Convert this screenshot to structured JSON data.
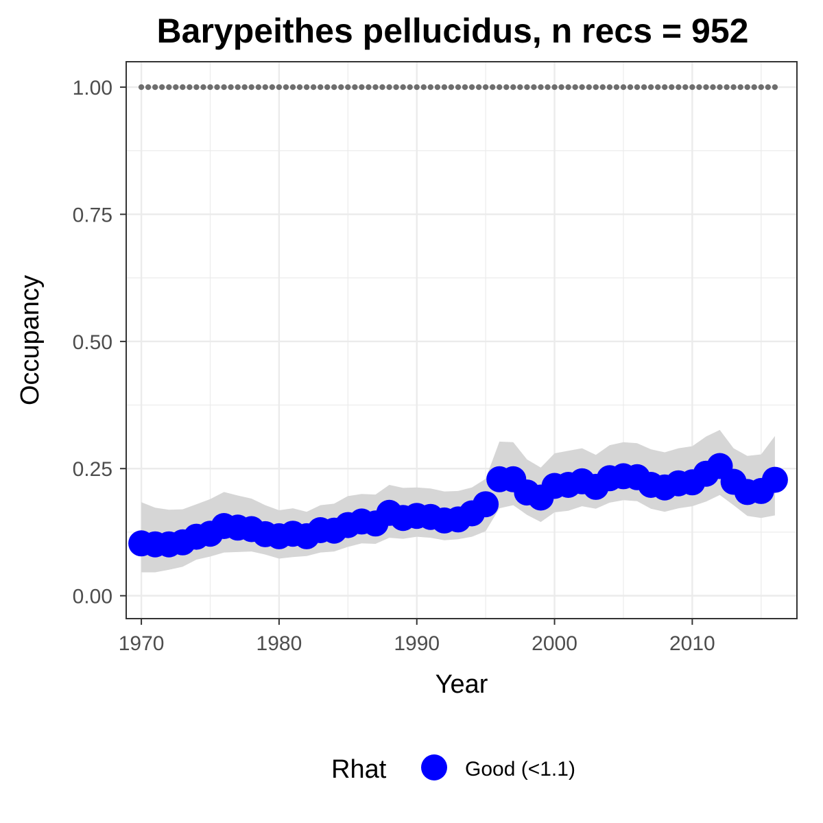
{
  "chart_data": {
    "type": "line",
    "title": "Barypeithes pellucidus, n recs = 952",
    "xlabel": "Year",
    "ylabel": "Occupancy",
    "xlim": [
      1968.9,
      2017.6
    ],
    "ylim": [
      -0.045,
      1.05
    ],
    "x_ticks": [
      1970,
      1980,
      1990,
      2000,
      2010
    ],
    "x_tick_labels": [
      "1970",
      "1980",
      "1990",
      "2000",
      "2010"
    ],
    "y_ticks": [
      0,
      0.25,
      0.5,
      0.75,
      1.0
    ],
    "y_tick_labels": [
      "0.00",
      "0.25",
      "0.50",
      "0.75",
      "1.00"
    ],
    "grid": true,
    "legend": {
      "title": "Rhat",
      "position": "bottom",
      "entries": [
        {
          "label": "Good (<1.1)",
          "color": "#0000ff"
        }
      ]
    },
    "colors": {
      "points": "#0000ff",
      "ribbon": "#d6d6d6",
      "reference_dots": "#6e6e6e",
      "grid": "#ebebeb",
      "panel_border": "#333333"
    },
    "reference_line": {
      "y": 1.0,
      "x_from": 1970,
      "x_to": 2016,
      "style": "dotted"
    },
    "x": [
      1970,
      1971,
      1972,
      1973,
      1974,
      1975,
      1976,
      1977,
      1978,
      1979,
      1980,
      1981,
      1982,
      1983,
      1984,
      1985,
      1986,
      1987,
      1988,
      1989,
      1990,
      1991,
      1992,
      1993,
      1994,
      1995,
      1996,
      1997,
      1998,
      1999,
      2000,
      2001,
      2002,
      2003,
      2004,
      2005,
      2006,
      2007,
      2008,
      2009,
      2010,
      2011,
      2012,
      2013,
      2014,
      2015,
      2016
    ],
    "series": [
      {
        "values": [
          0.103,
          0.101,
          0.101,
          0.105,
          0.116,
          0.122,
          0.137,
          0.134,
          0.131,
          0.121,
          0.117,
          0.122,
          0.117,
          0.129,
          0.128,
          0.139,
          0.146,
          0.142,
          0.163,
          0.153,
          0.157,
          0.155,
          0.148,
          0.15,
          0.162,
          0.18,
          0.229,
          0.229,
          0.203,
          0.193,
          0.216,
          0.218,
          0.225,
          0.214,
          0.231,
          0.235,
          0.233,
          0.218,
          0.213,
          0.221,
          0.223,
          0.24,
          0.255,
          0.224,
          0.204,
          0.206,
          0.228
        ],
        "lower": [
          0.046,
          0.046,
          0.051,
          0.057,
          0.071,
          0.077,
          0.085,
          0.086,
          0.087,
          0.081,
          0.073,
          0.076,
          0.078,
          0.085,
          0.087,
          0.096,
          0.103,
          0.102,
          0.114,
          0.112,
          0.116,
          0.114,
          0.109,
          0.111,
          0.116,
          0.127,
          0.172,
          0.178,
          0.159,
          0.145,
          0.164,
          0.167,
          0.176,
          0.171,
          0.183,
          0.188,
          0.186,
          0.171,
          0.165,
          0.172,
          0.176,
          0.185,
          0.198,
          0.178,
          0.157,
          0.153,
          0.158
        ],
        "upper": [
          0.184,
          0.173,
          0.169,
          0.17,
          0.18,
          0.19,
          0.204,
          0.197,
          0.191,
          0.178,
          0.168,
          0.172,
          0.165,
          0.178,
          0.181,
          0.196,
          0.2,
          0.199,
          0.218,
          0.212,
          0.213,
          0.211,
          0.205,
          0.206,
          0.213,
          0.23,
          0.303,
          0.302,
          0.268,
          0.252,
          0.28,
          0.285,
          0.29,
          0.277,
          0.296,
          0.302,
          0.3,
          0.288,
          0.282,
          0.29,
          0.294,
          0.313,
          0.326,
          0.29,
          0.275,
          0.278,
          0.314
        ]
      }
    ]
  }
}
